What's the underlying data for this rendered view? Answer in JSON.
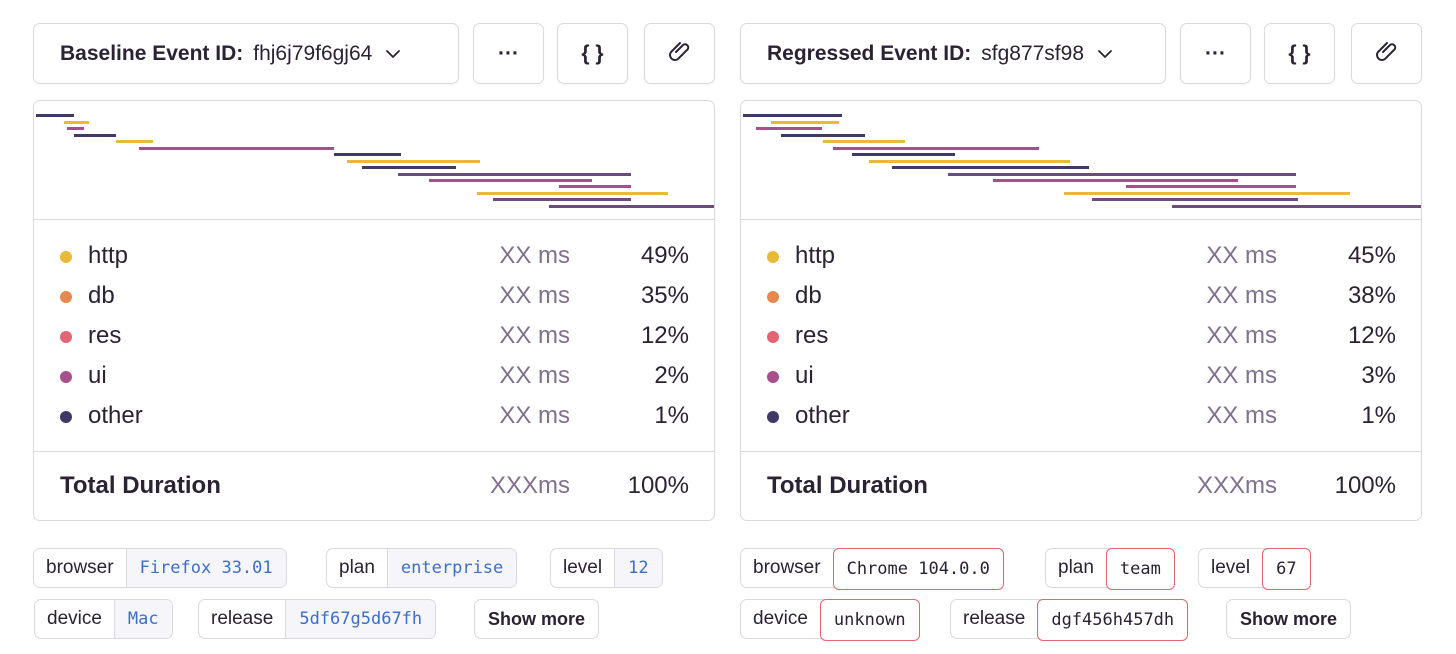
{
  "colors": {
    "http": "#e9b939",
    "db": "#e7894e",
    "res": "#e16572",
    "ui": "#a74f8a",
    "other": "#3f3966",
    "diff_border": "#e2646f",
    "tag_value": "#3b6ecc"
  },
  "baseline": {
    "event_label": "Baseline Event ID:",
    "event_id": "fhj6j79f6gj64",
    "more_label": "···",
    "json_label": "{ }",
    "ops": [
      {
        "name": "http",
        "duration": "XX ms",
        "percent": "49%",
        "color": "#e9b939"
      },
      {
        "name": "db",
        "duration": "XX ms",
        "percent": "35%",
        "color": "#e7894e"
      },
      {
        "name": "res",
        "duration": "XX ms",
        "percent": "12%",
        "color": "#e16572"
      },
      {
        "name": "ui",
        "duration": "XX ms",
        "percent": "2%",
        "color": "#a74f8a"
      },
      {
        "name": "other",
        "duration": "XX ms",
        "percent": "1%",
        "color": "#3f3966"
      }
    ],
    "total_label": "Total Duration",
    "total_duration": "XXXms",
    "total_percent": "100%",
    "tags": [
      {
        "key": "browser",
        "value": "Firefox 33.01"
      },
      {
        "key": "plan",
        "value": "enterprise"
      },
      {
        "key": "level",
        "value": "12"
      },
      {
        "key": "device",
        "value": "Mac"
      },
      {
        "key": "release",
        "value": "5df67g5d67fh"
      }
    ],
    "show_more": "Show more"
  },
  "regressed": {
    "event_label": "Regressed Event ID:",
    "event_id": "sfg877sf98",
    "more_label": "···",
    "json_label": "{ }",
    "ops": [
      {
        "name": "http",
        "duration": "XX ms",
        "percent": "45%",
        "color": "#e9b939"
      },
      {
        "name": "db",
        "duration": "XX ms",
        "percent": "38%",
        "color": "#e7894e"
      },
      {
        "name": "res",
        "duration": "XX ms",
        "percent": "12%",
        "color": "#e16572"
      },
      {
        "name": "ui",
        "duration": "XX ms",
        "percent": "3%",
        "color": "#a74f8a"
      },
      {
        "name": "other",
        "duration": "XX ms",
        "percent": "1%",
        "color": "#3f3966"
      }
    ],
    "total_label": "Total Duration",
    "total_duration": "XXXms",
    "total_percent": "100%",
    "tags": [
      {
        "key": "browser",
        "value": "Chrome 104.0.0"
      },
      {
        "key": "plan",
        "value": "team"
      },
      {
        "key": "level",
        "value": "67"
      },
      {
        "key": "device",
        "value": "unknown"
      },
      {
        "key": "release",
        "value": "dgf456h457dh"
      }
    ],
    "show_more": "Show more"
  }
}
